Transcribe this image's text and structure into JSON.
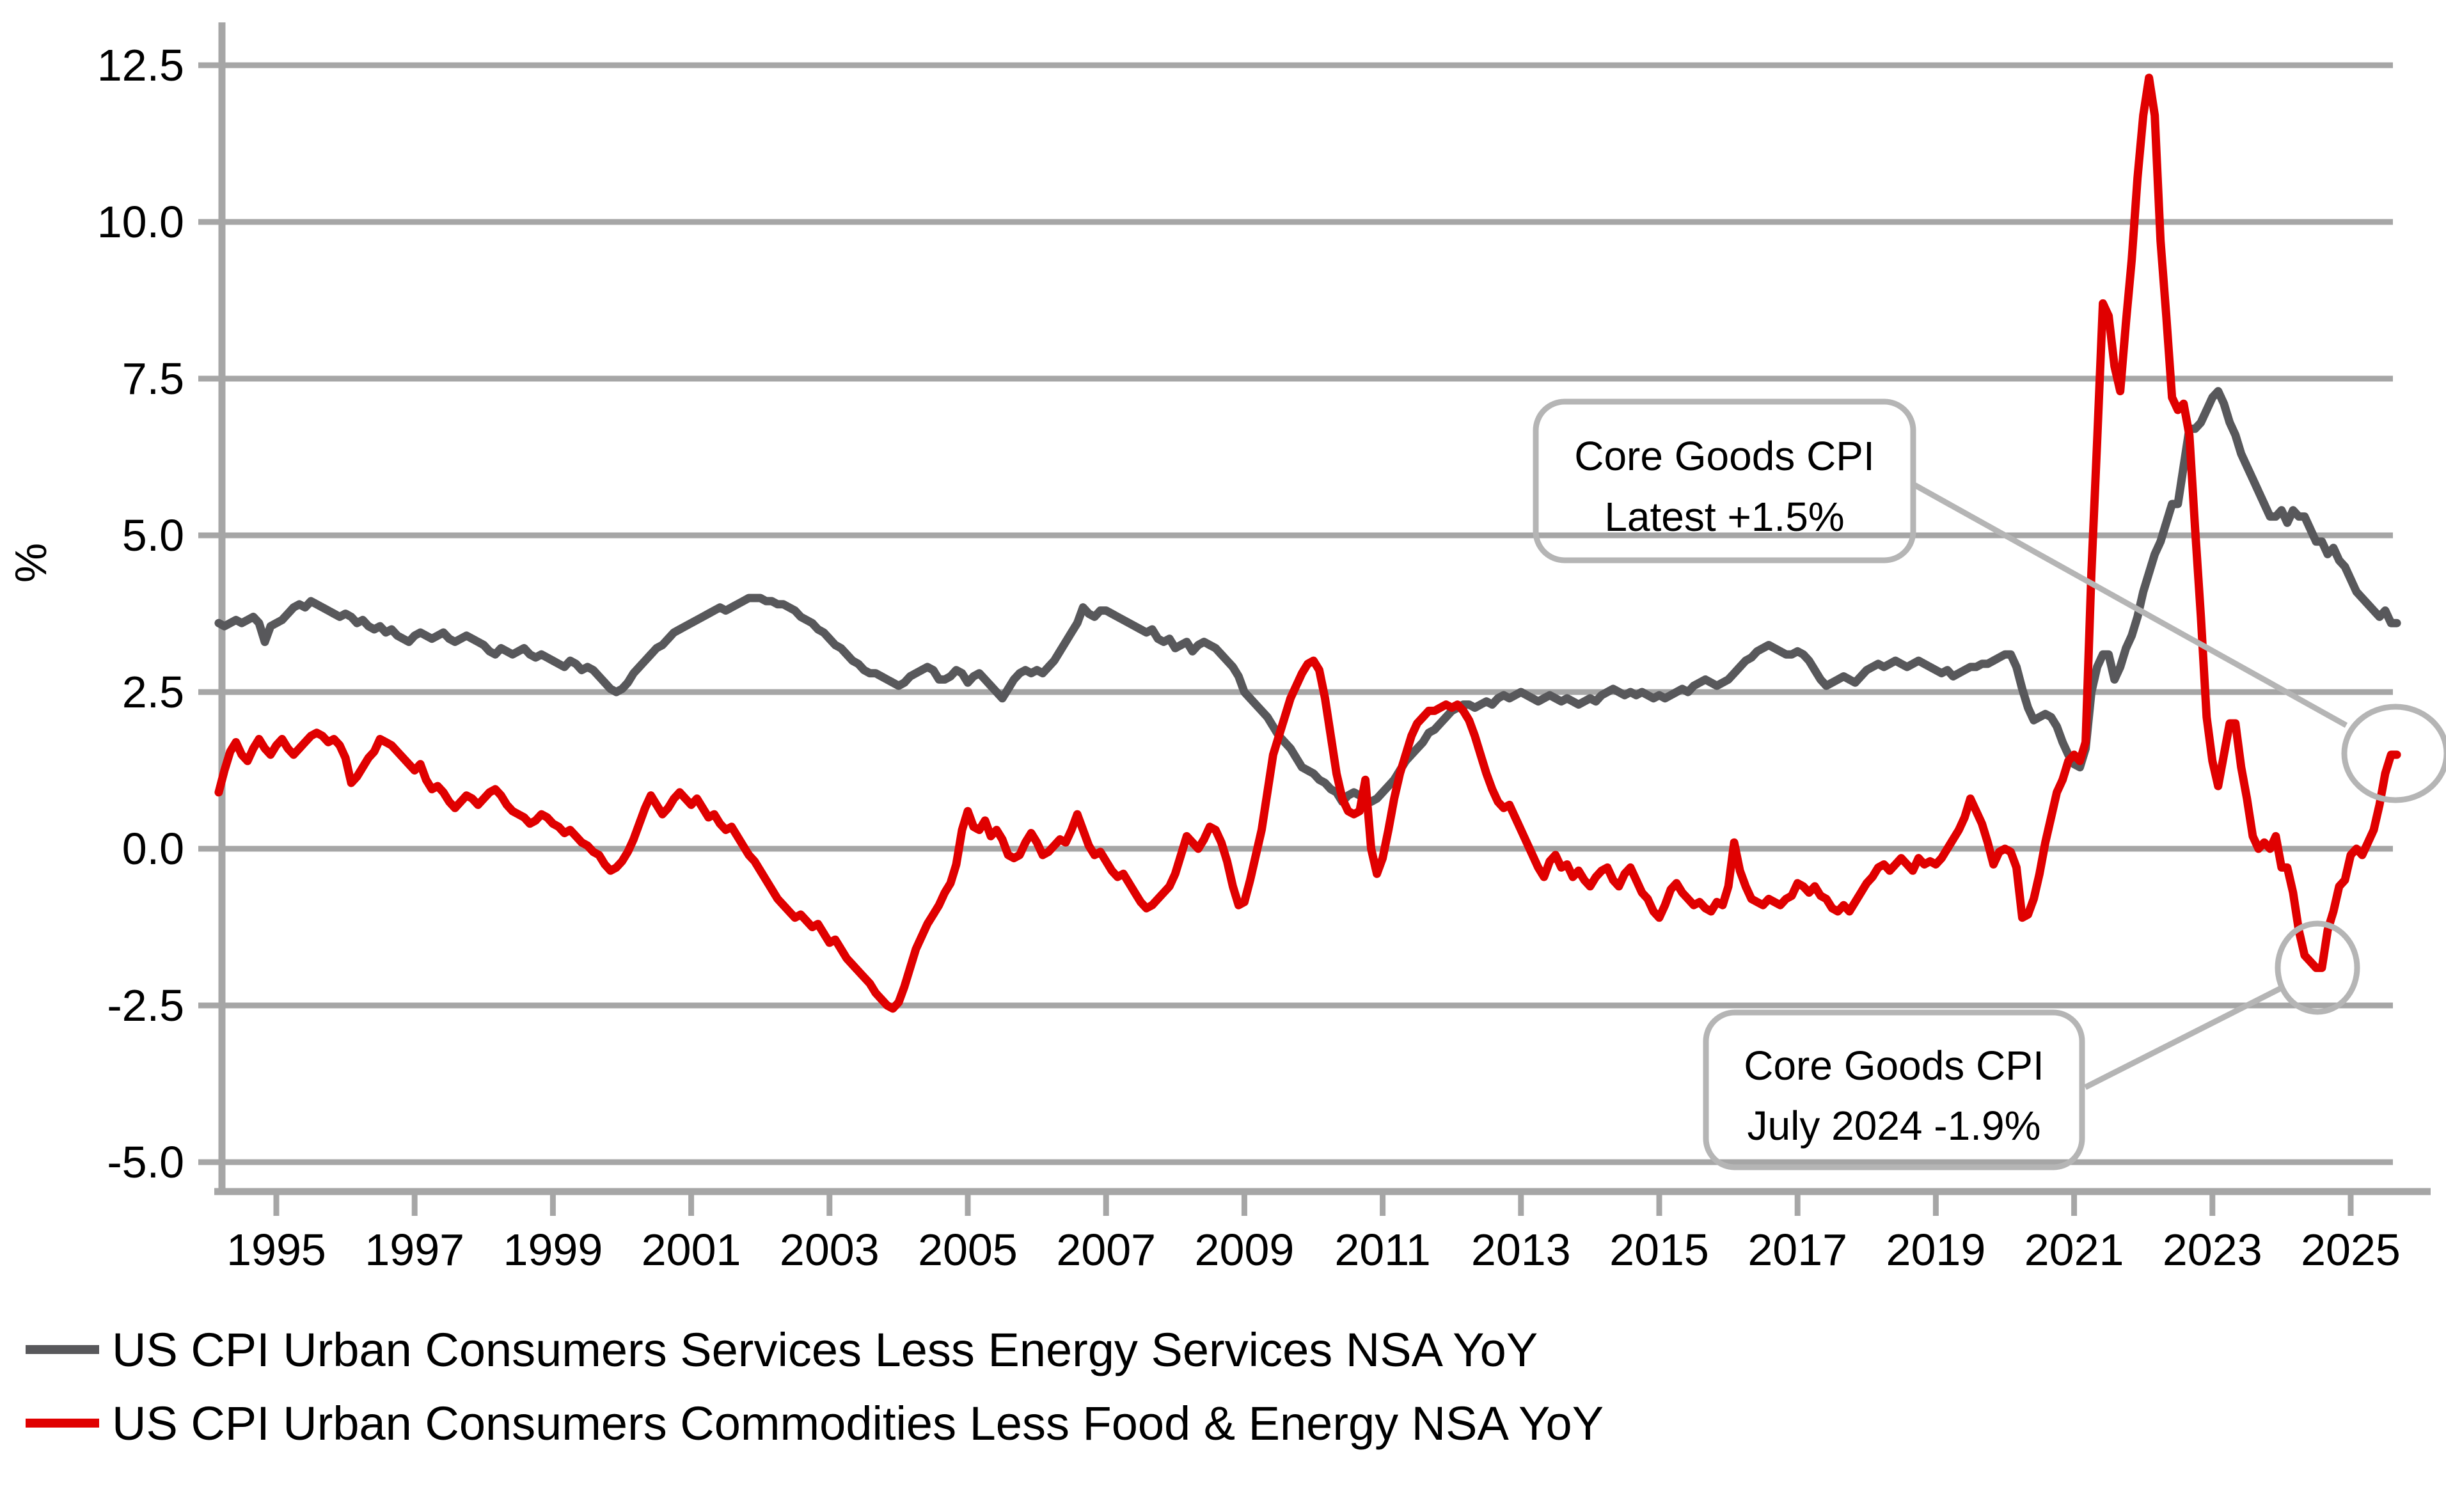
{
  "chart_data": {
    "type": "line",
    "title": "",
    "ylabel": "%",
    "xlabel": "",
    "grid": "horizontal",
    "legend_position": "bottom-left",
    "ylim": [
      -5.5,
      13.2
    ],
    "y_ticks": [
      12.5,
      10.0,
      7.5,
      5.0,
      2.5,
      0.0,
      -2.5,
      -5.0
    ],
    "y_tick_labels": [
      "12.5",
      "10.0",
      "7.5",
      "5.0",
      "2.5",
      "0.0",
      "-2.5",
      "-5.0"
    ],
    "x_ticks": [
      1995,
      1997,
      1999,
      2001,
      2003,
      2005,
      2007,
      2009,
      2011,
      2013,
      2015,
      2017,
      2019,
      2021,
      2023,
      2025
    ],
    "x_range_years": [
      1994.2,
      2025.75
    ],
    "series": [
      {
        "name": "US CPI Urban Consumers Services Less Energy Services NSA YoY",
        "color": "#58585b",
        "start_year": 1994,
        "start_month": 3,
        "values": [
          3.6,
          3.55,
          3.6,
          3.65,
          3.6,
          3.65,
          3.7,
          3.6,
          3.3,
          3.55,
          3.6,
          3.65,
          3.75,
          3.85,
          3.9,
          3.85,
          3.95,
          3.9,
          3.85,
          3.8,
          3.75,
          3.7,
          3.75,
          3.7,
          3.6,
          3.65,
          3.55,
          3.5,
          3.55,
          3.45,
          3.5,
          3.4,
          3.35,
          3.3,
          3.4,
          3.45,
          3.4,
          3.35,
          3.4,
          3.45,
          3.35,
          3.3,
          3.35,
          3.4,
          3.35,
          3.3,
          3.25,
          3.15,
          3.1,
          3.2,
          3.15,
          3.1,
          3.15,
          3.2,
          3.1,
          3.05,
          3.1,
          3.05,
          3.0,
          2.95,
          2.9,
          3.0,
          2.95,
          2.85,
          2.9,
          2.85,
          2.75,
          2.65,
          2.55,
          2.5,
          2.55,
          2.65,
          2.8,
          2.9,
          3.0,
          3.1,
          3.2,
          3.25,
          3.35,
          3.45,
          3.5,
          3.55,
          3.6,
          3.65,
          3.7,
          3.75,
          3.8,
          3.85,
          3.8,
          3.85,
          3.9,
          3.95,
          4.0,
          4.0,
          4.0,
          3.95,
          3.95,
          3.9,
          3.9,
          3.85,
          3.8,
          3.7,
          3.65,
          3.6,
          3.5,
          3.45,
          3.35,
          3.25,
          3.2,
          3.1,
          3.0,
          2.95,
          2.85,
          2.8,
          2.8,
          2.75,
          2.7,
          2.65,
          2.6,
          2.65,
          2.75,
          2.8,
          2.85,
          2.9,
          2.85,
          2.7,
          2.7,
          2.75,
          2.85,
          2.8,
          2.65,
          2.75,
          2.8,
          2.7,
          2.6,
          2.5,
          2.4,
          2.55,
          2.7,
          2.8,
          2.85,
          2.8,
          2.85,
          2.8,
          2.9,
          3.0,
          3.15,
          3.3,
          3.45,
          3.6,
          3.85,
          3.75,
          3.7,
          3.8,
          3.8,
          3.75,
          3.7,
          3.65,
          3.6,
          3.55,
          3.5,
          3.45,
          3.5,
          3.35,
          3.3,
          3.35,
          3.2,
          3.25,
          3.3,
          3.15,
          3.25,
          3.3,
          3.25,
          3.2,
          3.1,
          3.0,
          2.9,
          2.75,
          2.5,
          2.4,
          2.3,
          2.2,
          2.1,
          1.95,
          1.8,
          1.7,
          1.6,
          1.45,
          1.3,
          1.25,
          1.2,
          1.1,
          1.05,
          0.95,
          0.9,
          0.75,
          0.85,
          0.9,
          0.85,
          0.8,
          0.75,
          0.8,
          0.9,
          1.0,
          1.1,
          1.25,
          1.4,
          1.5,
          1.6,
          1.7,
          1.85,
          1.9,
          2.0,
          2.1,
          2.2,
          2.25,
          2.3,
          2.3,
          2.25,
          2.3,
          2.35,
          2.3,
          2.4,
          2.45,
          2.4,
          2.45,
          2.5,
          2.45,
          2.4,
          2.35,
          2.4,
          2.45,
          2.4,
          2.35,
          2.4,
          2.35,
          2.3,
          2.35,
          2.4,
          2.35,
          2.45,
          2.5,
          2.55,
          2.5,
          2.45,
          2.5,
          2.45,
          2.5,
          2.45,
          2.4,
          2.45,
          2.4,
          2.45,
          2.5,
          2.55,
          2.5,
          2.6,
          2.65,
          2.7,
          2.65,
          2.6,
          2.65,
          2.7,
          2.8,
          2.9,
          3.0,
          3.05,
          3.15,
          3.2,
          3.25,
          3.2,
          3.15,
          3.1,
          3.1,
          3.15,
          3.1,
          3.0,
          2.85,
          2.7,
          2.6,
          2.65,
          2.7,
          2.75,
          2.7,
          2.65,
          2.75,
          2.85,
          2.9,
          2.95,
          2.9,
          2.95,
          3.0,
          2.95,
          2.9,
          2.95,
          3.0,
          2.95,
          2.9,
          2.85,
          2.8,
          2.85,
          2.75,
          2.8,
          2.85,
          2.9,
          2.9,
          2.95,
          2.95,
          3.0,
          3.05,
          3.1,
          3.1,
          2.9,
          2.55,
          2.25,
          2.05,
          2.1,
          2.15,
          2.1,
          1.95,
          1.7,
          1.5,
          1.35,
          1.3,
          1.6,
          2.5,
          2.9,
          3.1,
          3.1,
          2.7,
          2.9,
          3.2,
          3.4,
          3.7,
          4.1,
          4.4,
          4.7,
          4.9,
          5.2,
          5.5,
          5.5,
          6.1,
          6.7,
          6.7,
          6.8,
          7.0,
          7.2,
          7.3,
          7.1,
          6.8,
          6.6,
          6.3,
          6.1,
          5.9,
          5.7,
          5.5,
          5.3,
          5.3,
          5.4,
          5.2,
          5.4,
          5.3,
          5.3,
          5.1,
          4.9,
          4.9,
          4.7,
          4.8,
          4.6,
          4.5,
          4.3,
          4.1,
          4.0,
          3.9,
          3.8,
          3.7,
          3.8,
          3.6,
          3.6
        ]
      },
      {
        "name": "US CPI Urban Consumers Commodities Less Food & Energy NSA YoY",
        "color": "#e00000",
        "start_year": 1994,
        "start_month": 3,
        "values": [
          0.9,
          1.25,
          1.55,
          1.7,
          1.5,
          1.4,
          1.6,
          1.75,
          1.6,
          1.5,
          1.65,
          1.75,
          1.6,
          1.5,
          1.6,
          1.7,
          1.8,
          1.85,
          1.8,
          1.7,
          1.75,
          1.65,
          1.45,
          1.05,
          1.15,
          1.3,
          1.45,
          1.55,
          1.75,
          1.7,
          1.65,
          1.55,
          1.45,
          1.35,
          1.25,
          1.35,
          1.1,
          0.95,
          1.0,
          0.9,
          0.75,
          0.65,
          0.75,
          0.85,
          0.8,
          0.7,
          0.8,
          0.9,
          0.95,
          0.85,
          0.7,
          0.6,
          0.55,
          0.5,
          0.4,
          0.45,
          0.55,
          0.5,
          0.4,
          0.35,
          0.25,
          0.3,
          0.2,
          0.1,
          0.05,
          -0.05,
          -0.1,
          -0.25,
          -0.35,
          -0.3,
          -0.2,
          -0.05,
          0.15,
          0.4,
          0.65,
          0.85,
          0.7,
          0.55,
          0.65,
          0.8,
          0.9,
          0.8,
          0.7,
          0.8,
          0.65,
          0.5,
          0.55,
          0.4,
          0.3,
          0.35,
          0.2,
          0.05,
          -0.1,
          -0.2,
          -0.35,
          -0.5,
          -0.65,
          -0.8,
          -0.9,
          -1.0,
          -1.1,
          -1.05,
          -1.15,
          -1.25,
          -1.2,
          -1.35,
          -1.5,
          -1.45,
          -1.6,
          -1.75,
          -1.85,
          -1.95,
          -2.05,
          -2.15,
          -2.3,
          -2.4,
          -2.5,
          -2.55,
          -2.45,
          -2.2,
          -1.9,
          -1.6,
          -1.4,
          -1.2,
          -1.05,
          -0.9,
          -0.7,
          -0.55,
          -0.25,
          0.3,
          0.6,
          0.35,
          0.3,
          0.45,
          0.2,
          0.3,
          0.15,
          -0.1,
          -0.15,
          -0.1,
          0.1,
          0.25,
          0.1,
          -0.1,
          -0.05,
          0.05,
          0.15,
          0.1,
          0.3,
          0.55,
          0.3,
          0.05,
          -0.1,
          -0.05,
          -0.2,
          -0.35,
          -0.45,
          -0.4,
          -0.55,
          -0.7,
          -0.85,
          -0.95,
          -0.9,
          -0.8,
          -0.7,
          -0.6,
          -0.4,
          -0.1,
          0.2,
          0.1,
          0.0,
          0.15,
          0.35,
          0.3,
          0.1,
          -0.2,
          -0.6,
          -0.9,
          -0.85,
          -0.5,
          -0.1,
          0.3,
          0.9,
          1.5,
          1.8,
          2.1,
          2.4,
          2.6,
          2.8,
          2.95,
          3.0,
          2.85,
          2.4,
          1.8,
          1.2,
          0.8,
          0.6,
          0.55,
          0.6,
          1.1,
          0.0,
          -0.4,
          -0.15,
          0.3,
          0.8,
          1.2,
          1.5,
          1.8,
          2.0,
          2.1,
          2.2,
          2.2,
          2.25,
          2.3,
          2.25,
          2.3,
          2.2,
          2.05,
          1.8,
          1.5,
          1.2,
          0.95,
          0.75,
          0.65,
          0.7,
          0.5,
          0.3,
          0.1,
          -0.1,
          -0.3,
          -0.45,
          -0.2,
          -0.1,
          -0.3,
          -0.25,
          -0.45,
          -0.35,
          -0.5,
          -0.6,
          -0.45,
          -0.35,
          -0.3,
          -0.5,
          -0.6,
          -0.4,
          -0.3,
          -0.5,
          -0.7,
          -0.8,
          -1.0,
          -1.1,
          -0.9,
          -0.65,
          -0.55,
          -0.7,
          -0.8,
          -0.9,
          -0.85,
          -0.95,
          -1.0,
          -0.85,
          -0.9,
          -0.6,
          0.1,
          -0.35,
          -0.6,
          -0.8,
          -0.85,
          -0.9,
          -0.8,
          -0.85,
          -0.9,
          -0.8,
          -0.75,
          -0.55,
          -0.6,
          -0.7,
          -0.6,
          -0.75,
          -0.8,
          -0.95,
          -1.0,
          -0.9,
          -1.0,
          -0.85,
          -0.7,
          -0.55,
          -0.45,
          -0.3,
          -0.25,
          -0.35,
          -0.25,
          -0.15,
          -0.25,
          -0.35,
          -0.15,
          -0.25,
          -0.2,
          -0.25,
          -0.15,
          0.0,
          0.15,
          0.3,
          0.5,
          0.8,
          0.6,
          0.4,
          0.1,
          -0.25,
          -0.05,
          0.0,
          -0.05,
          -0.3,
          -1.1,
          -1.05,
          -0.8,
          -0.4,
          0.1,
          0.5,
          0.9,
          1.1,
          1.4,
          1.5,
          1.4,
          1.7,
          4.4,
          6.5,
          8.7,
          8.5,
          7.7,
          7.3,
          8.4,
          9.4,
          10.7,
          11.7,
          12.3,
          11.7,
          9.7,
          8.5,
          7.2,
          7.0,
          7.1,
          6.6,
          5.1,
          3.7,
          2.1,
          1.4,
          1.0,
          1.5,
          2.0,
          2.0,
          1.3,
          0.8,
          0.2,
          0.0,
          0.1,
          0.0,
          0.2,
          -0.3,
          -0.3,
          -0.7,
          -1.3,
          -1.7,
          -1.8,
          -1.9,
          -1.9,
          -1.3,
          -1.0,
          -0.6,
          -0.5,
          -0.1,
          0.0,
          -0.1,
          0.1,
          0.3,
          0.7,
          1.2,
          1.5,
          1.5
        ]
      }
    ],
    "annotations": [
      {
        "line1": "Core Goods CPI",
        "line2": "Latest +1.5%",
        "target_year": 2025.67,
        "target_value": 1.5
      },
      {
        "line1": "Core Goods CPI",
        "line2": "July 2024 -1.9%",
        "target_year": 2024.5,
        "target_value": -1.9
      }
    ]
  },
  "style": {
    "gridline_color": "#a6a6a6",
    "axis_color": "#a6a6a6",
    "callout_color": "#b5b5b5",
    "text_color": "#000000",
    "background": "#ffffff"
  }
}
